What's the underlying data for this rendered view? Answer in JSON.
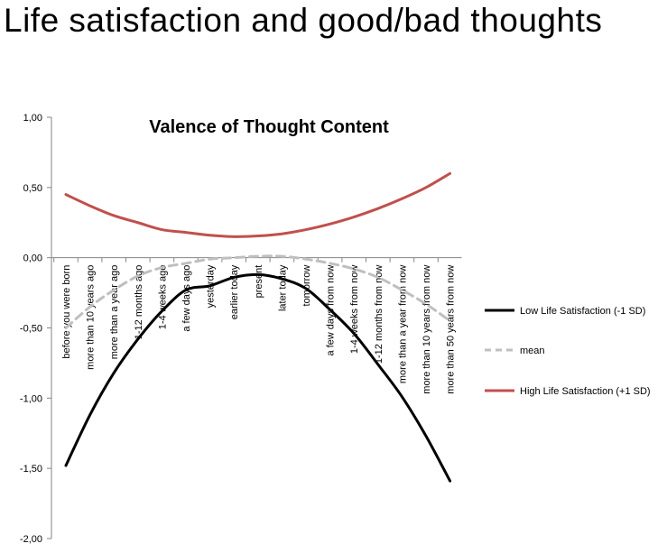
{
  "slide": {
    "title": "Life satisfaction and good/bad thoughts"
  },
  "chart_data": {
    "type": "line",
    "title": "Valence of Thought Content",
    "xlabel": "",
    "ylabel": "",
    "ylim": [
      -2.0,
      1.0
    ],
    "ytick_step": 0.5,
    "yticks": [
      "1,00",
      "0,50",
      "0,00",
      "-0,50",
      "-1,00",
      "-1,50",
      "-2,00"
    ],
    "grid": false,
    "legend_position": "right",
    "categories": [
      "before you were born",
      "more than 10 years ago",
      "more than a year ago",
      "1-12 months ago",
      "1-4 weeks ago",
      "a few days ago",
      "yesterday",
      "earlier today",
      "present",
      "later today",
      "tomorrow",
      "a few days from now",
      "1-4 weeks from now",
      "1-12 months from now",
      "more than a year from now",
      "more than 10 years from now",
      "more than 50 years from now"
    ],
    "series": [
      {
        "name": "Low Life Satisfaction (-1 SD)",
        "color": "#000000",
        "dash": "solid",
        "values": [
          -1.48,
          -1.12,
          -0.82,
          -0.58,
          -0.38,
          -0.23,
          -0.2,
          -0.14,
          -0.12,
          -0.15,
          -0.22,
          -0.37,
          -0.54,
          -0.76,
          -0.99,
          -1.27,
          -1.59
        ]
      },
      {
        "name": "mean",
        "color": "#bfbfbf",
        "dash": "dashed",
        "values": [
          -0.5,
          -0.35,
          -0.23,
          -0.13,
          -0.07,
          -0.04,
          -0.01,
          0.0,
          0.01,
          0.01,
          -0.01,
          -0.04,
          -0.08,
          -0.14,
          -0.23,
          -0.33,
          -0.45
        ]
      },
      {
        "name": "High Life Satisfaction (+1 SD)",
        "color": "#c0504d",
        "dash": "solid",
        "values": [
          0.45,
          0.37,
          0.3,
          0.25,
          0.2,
          0.18,
          0.16,
          0.15,
          0.155,
          0.17,
          0.2,
          0.24,
          0.29,
          0.35,
          0.42,
          0.5,
          0.6
        ]
      }
    ]
  }
}
